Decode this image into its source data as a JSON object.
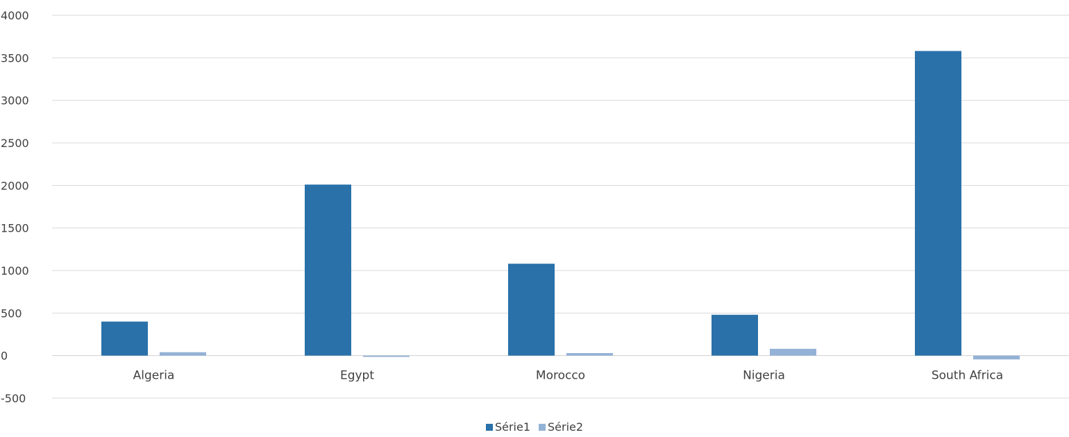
{
  "chart_data": {
    "type": "bar",
    "categories": [
      "Algeria",
      "Egypt",
      "Morocco",
      "Nigeria",
      "South Africa"
    ],
    "series": [
      {
        "name": "Série1",
        "color": "#2a71a9",
        "values": [
          400,
          2010,
          1080,
          480,
          3580
        ]
      },
      {
        "name": "Série2",
        "color": "#94b2d6",
        "values": [
          40,
          -15,
          30,
          80,
          -45
        ]
      }
    ],
    "ylim": [
      -500,
      4000
    ],
    "yticks": [
      -500,
      0,
      500,
      1000,
      1500,
      2000,
      2500,
      3000,
      3500,
      4000
    ],
    "grid": true,
    "legend": "bottom-center"
  }
}
